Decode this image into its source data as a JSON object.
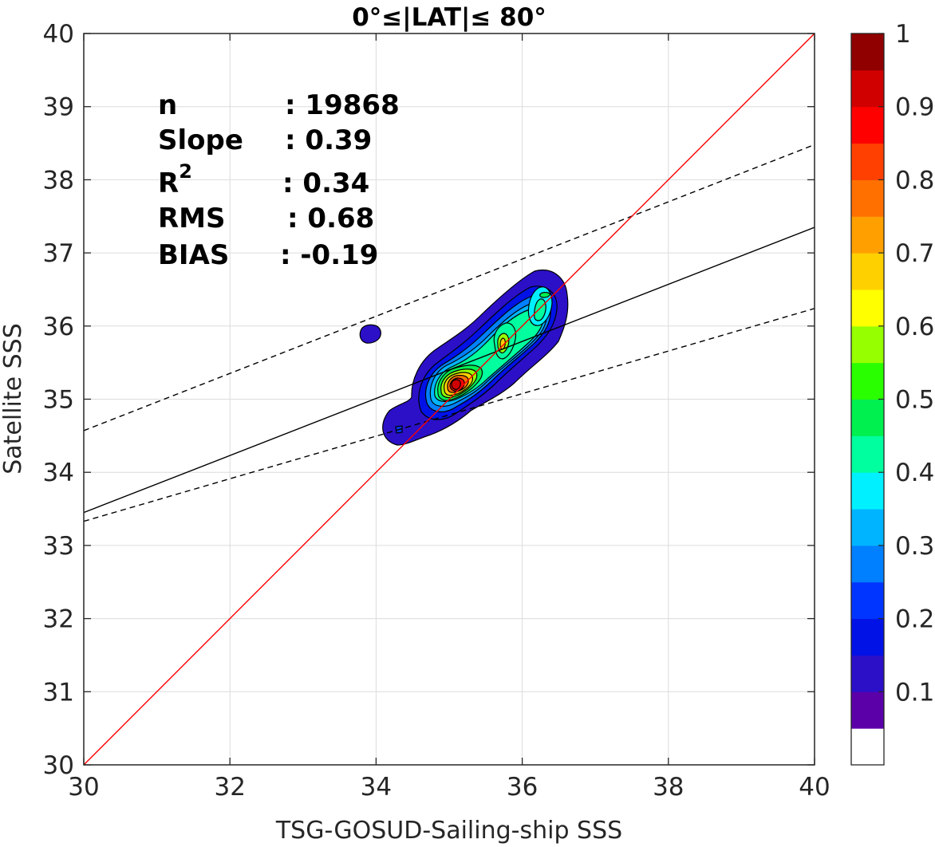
{
  "chart_data": {
    "type": "contour",
    "title": "0°≤|LAT|≤ 80°",
    "xlabel": "TSG-GOSUD-Sailing-ship SSS",
    "ylabel": "Satellite SSS",
    "xlim": [
      30,
      40
    ],
    "ylim": [
      30,
      40
    ],
    "xticks": [
      "30",
      "32",
      "34",
      "36",
      "38",
      "40"
    ],
    "yticks": [
      "30",
      "31",
      "32",
      "33",
      "34",
      "35",
      "36",
      "37",
      "38",
      "39",
      "40"
    ],
    "grid": true,
    "stats": [
      {
        "label": "n",
        "value": ": 19868"
      },
      {
        "label": "Slope",
        "value": ": 0.39"
      },
      {
        "label": "R2",
        "value": ": 0.34"
      },
      {
        "label": "RMS",
        "value": ": 0.68"
      },
      {
        "label": "BIAS",
        "value": ": -0.19"
      }
    ],
    "lines": {
      "identity": {
        "color": "#ff0000",
        "x": [
          30,
          40
        ],
        "y": [
          30,
          40
        ]
      },
      "regression": {
        "color": "#000000",
        "x": [
          30,
          40
        ],
        "y": [
          33.45,
          37.35
        ]
      },
      "upper_bound": {
        "color": "#000000",
        "dash": true,
        "x": [
          30,
          40
        ],
        "y": [
          34.57,
          38.48
        ]
      },
      "lower_bound": {
        "color": "#000000",
        "dash": true,
        "x": [
          30,
          40
        ],
        "y": [
          33.33,
          36.24
        ]
      }
    },
    "density_peak": {
      "x": 35.05,
      "y": 35.18
    },
    "secondary_peaks": [
      {
        "x": 35.75,
        "y": 35.78
      },
      {
        "x": 36.3,
        "y": 36.42
      },
      {
        "x": 33.9,
        "y": 35.86
      },
      {
        "x": 34.3,
        "y": 34.58
      }
    ],
    "colorbar": {
      "ticks": [
        "0.1",
        "0.2",
        "0.3",
        "0.4",
        "0.5",
        "0.6",
        "0.7",
        "0.8",
        "0.9",
        "1"
      ],
      "levels": [
        "#ffffff",
        "#5b00a8",
        "#2b10c8",
        "#0012e6",
        "#0035ff",
        "#0080ff",
        "#00b4ff",
        "#00f0ff",
        "#00ff9e",
        "#00f050",
        "#2aff00",
        "#96ff00",
        "#ffff00",
        "#ffd000",
        "#ffa000",
        "#ff7000",
        "#ff4000",
        "#ff0000",
        "#d00000",
        "#900000"
      ]
    }
  }
}
